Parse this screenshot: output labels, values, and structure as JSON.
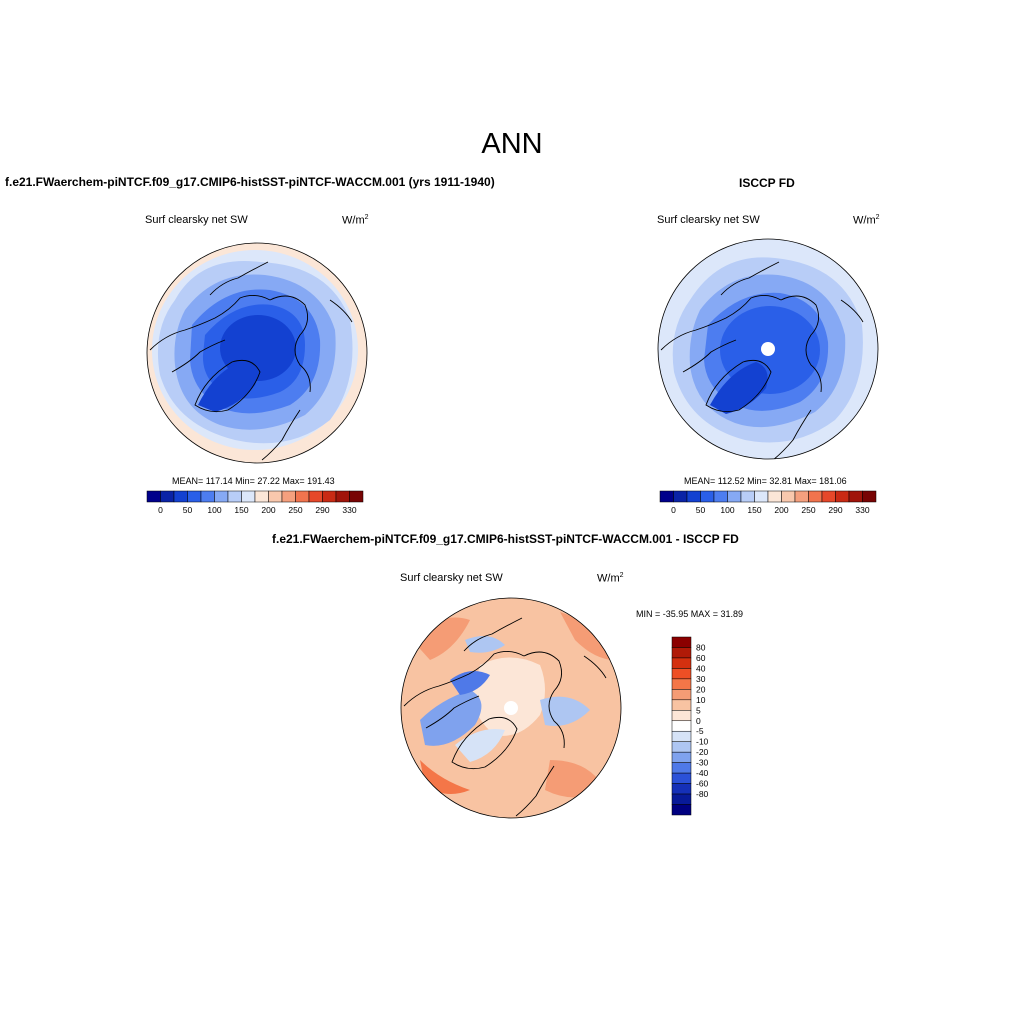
{
  "header": {
    "title": "ANN"
  },
  "panels": [
    {
      "id": "model",
      "title": "f.e21.FWaerchem-piNTCF.f09_g17.CMIP6-histSST-piNTCF-WACCM.001 (yrs 1911-1940)",
      "variable": "Surf clearsky net SW",
      "units_base": "W/m",
      "units_exp": "2",
      "stats_text": "MEAN= 117.14  Min=  27.22  Max= 191.43"
    },
    {
      "id": "obs",
      "title": "ISCCP FD",
      "variable": "Surf clearsky net SW",
      "units_base": "W/m",
      "units_exp": "2",
      "stats_text": "MEAN= 112.52  Min=  32.81  Max= 181.06"
    },
    {
      "id": "diff",
      "title": "f.e21.FWaerchem-piNTCF.f09_g17.CMIP6-histSST-piNTCF-WACCM.001 - ISCCP FD",
      "variable": "Surf clearsky net SW",
      "units_base": "W/m",
      "units_exp": "2",
      "stats_text": "MIN = -35.95 MAX =  31.89"
    }
  ],
  "chart_data": [
    {
      "type": "heatmap",
      "projection": "polar-stereographic-north",
      "title": "f.e21.FWaerchem-piNTCF.f09_g17.CMIP6-histSST-piNTCF-WACCM.001 (yrs 1911-1940)",
      "variable": "Surf clearsky net SW",
      "units": "W/m2",
      "mean": 117.14,
      "min": 27.22,
      "max": 191.43,
      "colorbar": {
        "orientation": "horizontal",
        "tick_labels": [
          "0",
          "50",
          "100",
          "150",
          "200",
          "250",
          "290",
          "330"
        ],
        "colors": [
          "#00008b",
          "#0a23a6",
          "#1341d1",
          "#2a5fe8",
          "#4d7df0",
          "#86a9f4",
          "#b8cdf7",
          "#dce7fa",
          "#fbe6d7",
          "#f9c8ad",
          "#f5a07e",
          "#f1744e",
          "#e6482a",
          "#c92a14",
          "#a0140a",
          "#780404"
        ]
      }
    },
    {
      "type": "heatmap",
      "projection": "polar-stereographic-north",
      "title": "ISCCP FD",
      "variable": "Surf clearsky net SW",
      "units": "W/m2",
      "mean": 112.52,
      "min": 32.81,
      "max": 181.06,
      "colorbar": {
        "orientation": "horizontal",
        "tick_labels": [
          "0",
          "50",
          "100",
          "150",
          "200",
          "250",
          "290",
          "330"
        ],
        "colors": [
          "#00008b",
          "#0a23a6",
          "#1341d1",
          "#2a5fe8",
          "#4d7df0",
          "#86a9f4",
          "#b8cdf7",
          "#dce7fa",
          "#fbe6d7",
          "#f9c8ad",
          "#f5a07e",
          "#f1744e",
          "#e6482a",
          "#c92a14",
          "#a0140a",
          "#780404"
        ]
      }
    },
    {
      "type": "heatmap",
      "projection": "polar-stereographic-north",
      "title": "f.e21.FWaerchem-piNTCF.f09_g17.CMIP6-histSST-piNTCF-WACCM.001 - ISCCP FD",
      "variable": "Surf clearsky net SW",
      "units": "W/m2",
      "min": -35.95,
      "max": 31.89,
      "colorbar": {
        "orientation": "vertical",
        "tick_labels": [
          "80",
          "60",
          "40",
          "30",
          "20",
          "10",
          "5",
          "0",
          "-5",
          "-10",
          "-20",
          "-30",
          "-40",
          "-60",
          "-80"
        ],
        "colors": [
          "#8b0000",
          "#b01a08",
          "#d4300f",
          "#ee4f25",
          "#f47648",
          "#f59c75",
          "#f8c3a2",
          "#fce6d7",
          "#ffffff",
          "#d6e3f7",
          "#aec6f2",
          "#7fa2ee",
          "#4f79e8",
          "#2b51d8",
          "#1530b8",
          "#081a98",
          "#000080"
        ]
      }
    }
  ]
}
